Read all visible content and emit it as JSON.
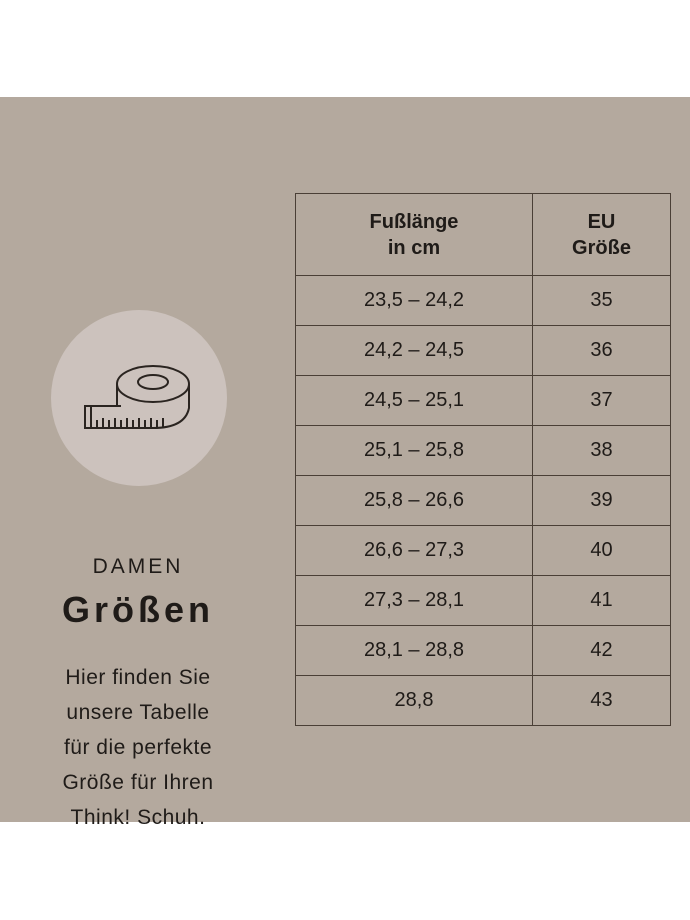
{
  "heading": {
    "small": "DAMEN",
    "large": "Größen"
  },
  "description": [
    "Hier finden Sie",
    "unsere Tabelle",
    "für die perfekte",
    "Größe für Ihren",
    "Think! Schuh."
  ],
  "table": {
    "headers": [
      [
        "Fußlänge",
        "in cm"
      ],
      [
        "EU",
        "Größe"
      ]
    ],
    "rows": [
      [
        "23,5 – 24,2",
        "35"
      ],
      [
        "24,2 – 24,5",
        "36"
      ],
      [
        "24,5 – 25,1",
        "37"
      ],
      [
        "25,1 – 25,8",
        "38"
      ],
      [
        "25,8 – 26,6",
        "39"
      ],
      [
        "26,6 – 27,3",
        "40"
      ],
      [
        "27,3 – 28,1",
        "41"
      ],
      [
        "28,1 – 28,8",
        "42"
      ],
      [
        "28,8",
        "43"
      ]
    ]
  },
  "icons": {
    "circle": "measuring-tape-icon"
  },
  "colors": {
    "background": "#b4a99e",
    "circle": "#ccc2bd",
    "text": "#1f1b18"
  }
}
